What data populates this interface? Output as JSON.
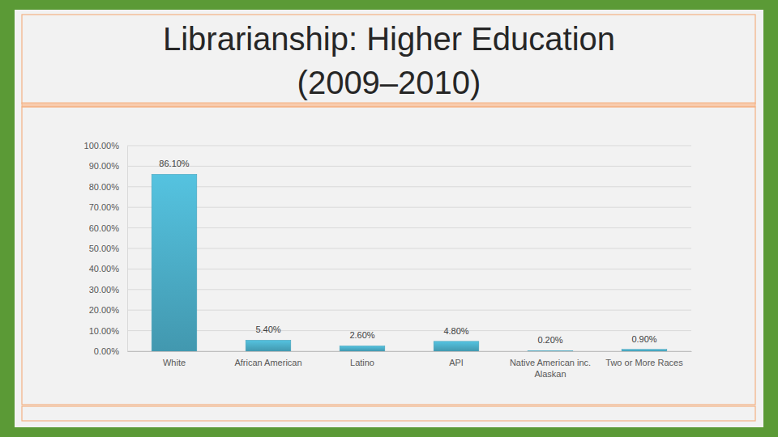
{
  "chart_data": {
    "type": "bar",
    "title": "Librarianship: Higher Education (2009–2010)",
    "categories": [
      "White",
      "African American",
      "Latino",
      "API",
      "Native American inc. Alaskan",
      "Two or More Races"
    ],
    "values": [
      86.1,
      5.4,
      2.6,
      4.8,
      0.2,
      0.9
    ],
    "value_labels": [
      "86.10%",
      "5.40%",
      "2.60%",
      "4.80%",
      "0.20%",
      "0.90%"
    ],
    "data_labels": true,
    "color": "#4bacc6",
    "ylim": [
      0,
      100
    ],
    "yticks": [
      {
        "value": 0,
        "label": "0.00%"
      },
      {
        "value": 10,
        "label": "10.00%"
      },
      {
        "value": 20,
        "label": "20.00%"
      },
      {
        "value": 30,
        "label": "30.00%"
      },
      {
        "value": 40,
        "label": "40.00%"
      },
      {
        "value": 50,
        "label": "50.00%"
      },
      {
        "value": 60,
        "label": "60.00%"
      },
      {
        "value": 70,
        "label": "70.00%"
      },
      {
        "value": 80,
        "label": "80.00%"
      },
      {
        "value": 90,
        "label": "90.00%"
      },
      {
        "value": 100,
        "label": "100.00%"
      }
    ],
    "grid": true
  }
}
